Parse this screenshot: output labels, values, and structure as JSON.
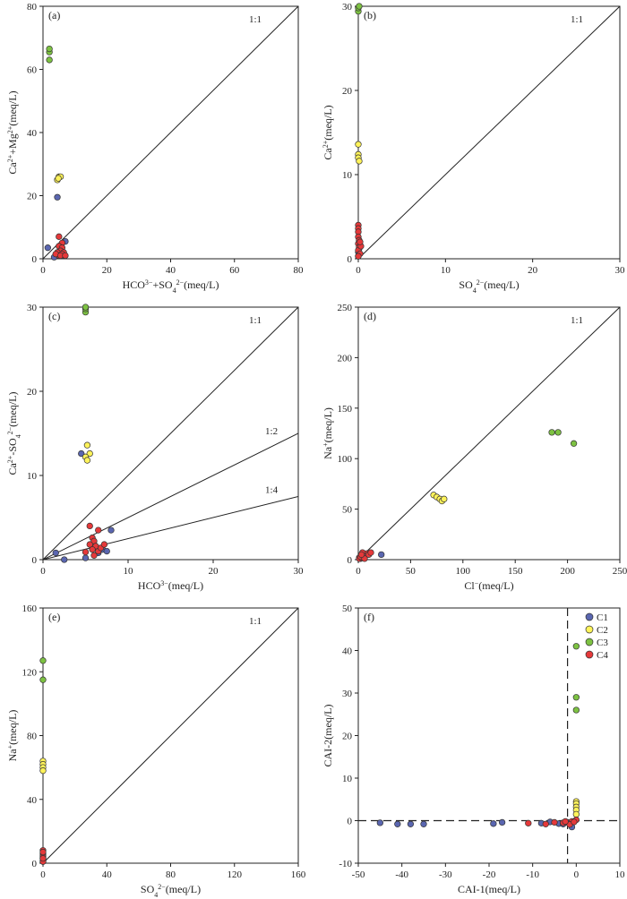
{
  "colors": {
    "C1": "#5a66b0",
    "C2": "#fff35a",
    "C3": "#7dc242",
    "C4": "#e5393a",
    "axis": "#222222"
  },
  "legend": [
    "C1",
    "C2",
    "C3",
    "C4"
  ],
  "chart_data": [
    {
      "type": "scatter",
      "panel_label": "(a)",
      "xlabel": "HCO3−+SO42−(meq/L)",
      "ylabel": "Ca2++Mg2+(meq/L)",
      "xlim": [
        0,
        80
      ],
      "ylim": [
        0,
        80
      ],
      "xticks": [
        0,
        20,
        40,
        60,
        80
      ],
      "yticks": [
        0,
        20,
        40,
        60,
        80
      ],
      "ref_lines": [
        {
          "label": "1:1",
          "slope": 1
        }
      ],
      "series": [
        {
          "name": "C1",
          "points": [
            [
              4.5,
              19.5
            ],
            [
              1.5,
              3.5
            ],
            [
              7,
              5.5
            ],
            [
              5,
              1.5
            ],
            [
              6,
              1
            ],
            [
              3.5,
              0.5
            ],
            [
              5.5,
              3
            ]
          ]
        },
        {
          "name": "C2",
          "points": [
            [
              4.5,
              25
            ],
            [
              5,
              26
            ],
            [
              5.5,
              26
            ],
            [
              4.8,
              25.5
            ]
          ]
        },
        {
          "name": "C3",
          "points": [
            [
              2,
              63
            ],
            [
              2,
              65.5
            ],
            [
              2,
              66.5
            ]
          ]
        },
        {
          "name": "C4",
          "points": [
            [
              5,
              7
            ],
            [
              6,
              5
            ],
            [
              5,
              4
            ],
            [
              6,
              3.5
            ],
            [
              5.5,
              2.5
            ],
            [
              4.5,
              2
            ],
            [
              6.5,
              2
            ],
            [
              5,
              1
            ],
            [
              6,
              1.5
            ],
            [
              4,
              1.5
            ],
            [
              5.5,
              1
            ],
            [
              7,
              1
            ]
          ]
        }
      ]
    },
    {
      "type": "scatter",
      "panel_label": "(b)",
      "xlabel": "SO42−(meq/L)",
      "ylabel": "Ca2+(meq/L)",
      "xlim": [
        0,
        30
      ],
      "ylim": [
        0,
        30
      ],
      "xticks": [
        0,
        10,
        20,
        30
      ],
      "yticks": [
        0,
        10,
        20,
        30
      ],
      "ref_lines": [
        {
          "label": "1:1",
          "slope": 1
        }
      ],
      "series": [
        {
          "name": "C1",
          "points": [
            [
              0,
              0.3
            ],
            [
              0,
              0.8
            ],
            [
              0.1,
              1.2
            ]
          ]
        },
        {
          "name": "C2",
          "points": [
            [
              0,
              13.6
            ],
            [
              0,
              12.4
            ],
            [
              0,
              12
            ],
            [
              0.1,
              11.6
            ]
          ]
        },
        {
          "name": "C3",
          "points": [
            [
              0,
              29.4
            ],
            [
              0,
              29.8
            ],
            [
              0.1,
              30
            ]
          ]
        },
        {
          "name": "C4",
          "points": [
            [
              0,
              4
            ],
            [
              0,
              3.6
            ],
            [
              0,
              3.2
            ],
            [
              0,
              2.6
            ],
            [
              0.1,
              2.2
            ],
            [
              0,
              1.8
            ],
            [
              0.1,
              1.4
            ],
            [
              0,
              1
            ],
            [
              0.2,
              0.6
            ],
            [
              0,
              0.3
            ],
            [
              0.3,
              1.5
            ],
            [
              0.2,
              2
            ]
          ]
        }
      ]
    },
    {
      "type": "scatter",
      "panel_label": "(c)",
      "xlabel": "HCO3−(meq/L)",
      "ylabel": "Ca2+-SO42−(meq/L)",
      "xlim": [
        0,
        30
      ],
      "ylim": [
        0,
        30
      ],
      "xticks": [
        0,
        10,
        20,
        30
      ],
      "yticks": [
        0,
        10,
        20,
        30
      ],
      "ref_lines": [
        {
          "label": "1:1",
          "slope": 1
        },
        {
          "label": "1:2",
          "slope": 0.5
        },
        {
          "label": "1:4",
          "slope": 0.25
        }
      ],
      "series": [
        {
          "name": "C1",
          "points": [
            [
              4.5,
              12.6
            ],
            [
              1.5,
              0.8
            ],
            [
              2.5,
              0
            ],
            [
              8,
              3.5
            ],
            [
              7,
              1.2
            ],
            [
              6.5,
              0.8
            ],
            [
              5,
              0.2
            ],
            [
              7.5,
              1
            ]
          ]
        },
        {
          "name": "C2",
          "points": [
            [
              5.2,
              13.6
            ],
            [
              5.5,
              12.6
            ],
            [
              5,
              12.2
            ],
            [
              5.2,
              11.8
            ]
          ]
        },
        {
          "name": "C3",
          "points": [
            [
              5,
              29.4
            ],
            [
              5,
              29.8
            ],
            [
              5,
              30
            ]
          ]
        },
        {
          "name": "C4",
          "points": [
            [
              5.5,
              4
            ],
            [
              6.5,
              3.5
            ],
            [
              5.8,
              2.6
            ],
            [
              6,
              2.2
            ],
            [
              5.5,
              1.8
            ],
            [
              6.2,
              1.6
            ],
            [
              5.8,
              1.2
            ],
            [
              6.5,
              1
            ],
            [
              5,
              0.9
            ],
            [
              6,
              0.5
            ],
            [
              6.8,
              1.4
            ],
            [
              7.2,
              1.8
            ]
          ]
        }
      ]
    },
    {
      "type": "scatter",
      "panel_label": "(d)",
      "xlabel": "Cl−(meq/L)",
      "ylabel": "Na+(meq/L)",
      "xlim": [
        0,
        250
      ],
      "ylim": [
        0,
        250
      ],
      "xticks": [
        0,
        50,
        100,
        150,
        200,
        250
      ],
      "yticks": [
        0,
        50,
        100,
        150,
        200,
        250
      ],
      "ref_lines": [
        {
          "label": "1:1",
          "slope": 1
        }
      ],
      "series": [
        {
          "name": "C1",
          "points": [
            [
              22,
              5
            ],
            [
              2,
              1
            ],
            [
              5,
              3
            ],
            [
              1,
              2
            ]
          ]
        },
        {
          "name": "C2",
          "points": [
            [
              72,
              64
            ],
            [
              75,
              62
            ],
            [
              78,
              60
            ],
            [
              80,
              58
            ],
            [
              82,
              60
            ]
          ]
        },
        {
          "name": "C3",
          "points": [
            [
              185,
              126
            ],
            [
              191,
              126
            ],
            [
              206,
              115
            ]
          ]
        },
        {
          "name": "C4",
          "points": [
            [
              1,
              1
            ],
            [
              3,
              2
            ],
            [
              5,
              5
            ],
            [
              2,
              3
            ],
            [
              8,
              6
            ],
            [
              4,
              7
            ],
            [
              10,
              5
            ],
            [
              6,
              1
            ],
            [
              12,
              7
            ],
            [
              3,
              5
            ]
          ]
        }
      ]
    },
    {
      "type": "scatter",
      "panel_label": "(e)",
      "xlabel": "SO42−(meq/L)",
      "ylabel": "Na+(meq/L)",
      "xlim": [
        0,
        160
      ],
      "ylim": [
        0,
        160
      ],
      "xticks": [
        0,
        40,
        80,
        120,
        160
      ],
      "yticks": [
        0,
        40,
        80,
        120,
        160
      ],
      "ref_lines": [
        {
          "label": "1:1",
          "slope": 1
        }
      ],
      "series": [
        {
          "name": "C1",
          "points": [
            [
              0,
              1
            ],
            [
              0,
              3
            ],
            [
              0,
              5
            ]
          ]
        },
        {
          "name": "C2",
          "points": [
            [
              0,
              64
            ],
            [
              0,
              62
            ],
            [
              0,
              60
            ],
            [
              0,
              58
            ]
          ]
        },
        {
          "name": "C3",
          "points": [
            [
              0,
              127
            ],
            [
              0,
              115
            ]
          ]
        },
        {
          "name": "C4",
          "points": [
            [
              0,
              8
            ],
            [
              0,
              6
            ],
            [
              0,
              4
            ],
            [
              0,
              2
            ],
            [
              0,
              1
            ],
            [
              0,
              7
            ],
            [
              0,
              3
            ]
          ]
        }
      ]
    },
    {
      "type": "scatter",
      "panel_label": "(f)",
      "xlabel": "CAI-1(meq/L)",
      "ylabel": "CAI-2(meq/L)",
      "xlim": [
        -50,
        10
      ],
      "ylim": [
        -10,
        50
      ],
      "xticks": [
        -50,
        -40,
        -30,
        -20,
        -10,
        0,
        10
      ],
      "yticks": [
        -10,
        0,
        10,
        20,
        30,
        40,
        50
      ],
      "ref_vlines": [
        -2
      ],
      "ref_hlines": [
        0
      ],
      "series": [
        {
          "name": "C1",
          "points": [
            [
              -45,
              -0.5
            ],
            [
              -41,
              -0.8
            ],
            [
              -38,
              -0.8
            ],
            [
              -35,
              -0.8
            ],
            [
              -19,
              -0.7
            ],
            [
              -17,
              -0.4
            ],
            [
              -8,
              -0.6
            ],
            [
              -6,
              -0.3
            ],
            [
              -4,
              -0.7
            ],
            [
              -1,
              -1.5
            ],
            [
              -2,
              -0.4
            ],
            [
              -3,
              -0.8
            ]
          ]
        },
        {
          "name": "C2",
          "points": [
            [
              0,
              4.5
            ],
            [
              0,
              4
            ],
            [
              0,
              3.2
            ],
            [
              0,
              2.5
            ],
            [
              0,
              1.5
            ]
          ]
        },
        {
          "name": "C3",
          "points": [
            [
              0,
              41
            ],
            [
              0,
              29
            ],
            [
              0,
              26
            ]
          ]
        },
        {
          "name": "C4",
          "points": [
            [
              -11,
              -0.6
            ],
            [
              -7,
              -0.8
            ],
            [
              -5,
              -0.4
            ],
            [
              -3,
              -0.5
            ],
            [
              -1,
              -0.2
            ],
            [
              0,
              0.2
            ],
            [
              -1.5,
              -0.9
            ],
            [
              -0.5,
              -0.3
            ],
            [
              -2.5,
              -0.2
            ]
          ]
        }
      ]
    }
  ]
}
